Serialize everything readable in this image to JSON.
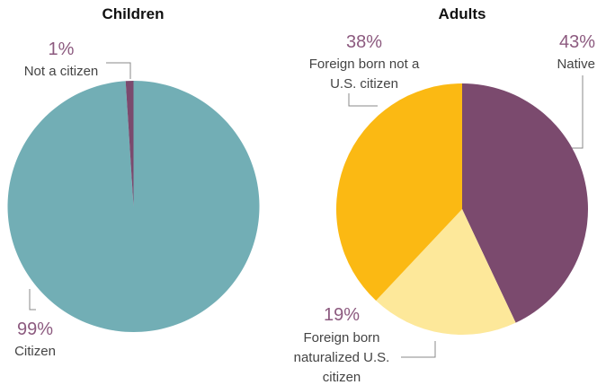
{
  "chart_data": [
    {
      "type": "pie",
      "title": "Children",
      "categories": [
        "Citizen",
        "Not a citizen"
      ],
      "values": [
        99,
        1
      ],
      "value_labels": [
        "99%",
        "1%"
      ],
      "colors": [
        "#72aeb5",
        "#7b4a6e"
      ]
    },
    {
      "type": "pie",
      "title": "Adults",
      "categories": [
        "Native",
        "Foreign born naturalized U.S. citizen",
        "Foreign born not a U.S. citizen"
      ],
      "values": [
        43,
        19,
        38
      ],
      "value_labels": [
        "43%",
        "19%",
        "38%"
      ],
      "colors": [
        "#7b4a6e",
        "#fde89a",
        "#fbb913"
      ]
    }
  ]
}
